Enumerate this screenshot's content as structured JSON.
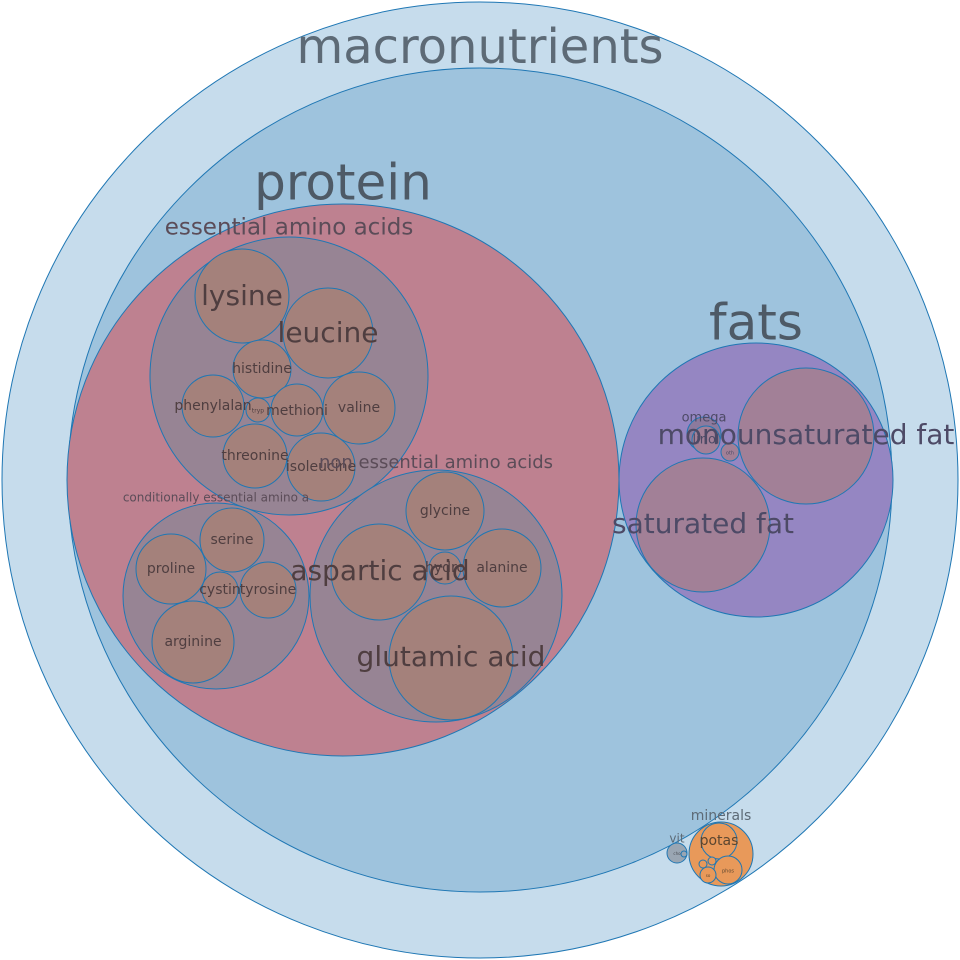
{
  "labels": {
    "macronutrients": "macronutrients",
    "protein": "protein",
    "essential_amino_acids": "essential amino acids",
    "lysine": "lysine",
    "leucine": "leucine",
    "histidine": "histidine",
    "phenylalanine": "phenylalan",
    "tryptophan": "tryp",
    "methionine": "methioni",
    "valine": "valine",
    "threonine": "threonine",
    "isoleucine": "isoleucine",
    "non_essential_amino_acids": "non essential amino acids",
    "glycine": "glycine",
    "aspartic_acid": "aspartic acid",
    "hydroxyproline": "hydro",
    "alanine": "alanine",
    "glutamic_acid": "glutamic acid",
    "conditionally_essential_amino_acids": "conditionally essential amino a",
    "serine": "serine",
    "proline": "proline",
    "cystine": "cystin",
    "tyrosine": "tyrosine",
    "arginine": "arginine",
    "fats": "fats",
    "monounsaturated_fat": "monounsaturated fat",
    "saturated_fat": "saturated fat",
    "omega": "omega",
    "linoleic": "linol",
    "fats_small": "oth",
    "minerals": "minerals",
    "potassium": "potas",
    "phosphorus": "phos",
    "sodium": "so",
    "vit": "vit",
    "vit_small": "cho"
  }
}
